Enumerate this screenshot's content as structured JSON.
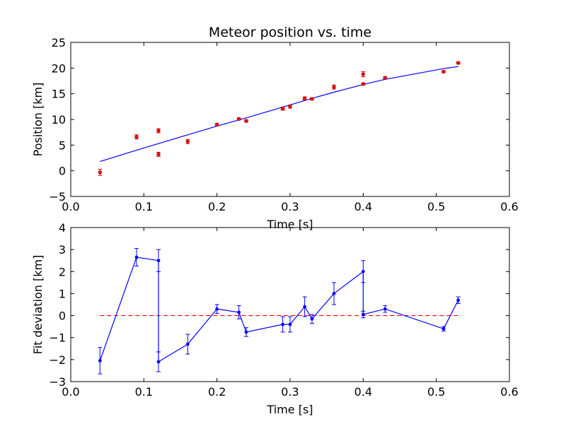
{
  "chart_data": [
    {
      "type": "scatter",
      "title": "Meteor position vs. time",
      "xlabel": "Time [s]",
      "ylabel": "Position [km]",
      "xlim": [
        0.0,
        0.6
      ],
      "ylim": [
        -5,
        25
      ],
      "xticks": [
        "0.0",
        "0.1",
        "0.2",
        "0.3",
        "0.4",
        "0.5",
        "0.6"
      ],
      "yticks": [
        "−5",
        "0",
        "5",
        "10",
        "15",
        "20",
        "25"
      ],
      "grid": false,
      "colors": {
        "points": "#ff0000",
        "fit": "#0000ff"
      },
      "series": [
        {
          "kind": "points-with-error",
          "x": [
            0.04,
            0.09,
            0.12,
            0.12,
            0.16,
            0.2,
            0.23,
            0.24,
            0.29,
            0.3,
            0.32,
            0.33,
            0.36,
            0.4,
            0.4,
            0.43,
            0.51,
            0.53
          ],
          "y": [
            -0.3,
            6.6,
            7.8,
            3.2,
            5.7,
            9.0,
            10.1,
            9.7,
            12.1,
            12.5,
            14.1,
            14.0,
            16.3,
            18.8,
            16.9,
            18.1,
            19.3,
            21.0
          ],
          "yerr": [
            0.6,
            0.4,
            0.4,
            0.4,
            0.4,
            0.2,
            0.2,
            0.2,
            0.3,
            0.3,
            0.3,
            0.2,
            0.4,
            0.5,
            0.2,
            0.2,
            0.2,
            0.2
          ]
        },
        {
          "kind": "fit-line",
          "x": [
            0.04,
            0.09,
            0.12,
            0.16,
            0.2,
            0.24,
            0.29,
            0.33,
            0.36,
            0.4,
            0.43,
            0.51,
            0.53
          ],
          "y": [
            1.8,
            4.0,
            5.3,
            7.0,
            8.7,
            10.3,
            12.4,
            14.1,
            15.3,
            16.8,
            17.8,
            19.9,
            20.3
          ]
        }
      ]
    },
    {
      "type": "line",
      "title": "",
      "xlabel": "Time [s]",
      "ylabel": "Fit deviation [km]",
      "xlim": [
        0.0,
        0.6
      ],
      "ylim": [
        -3,
        4
      ],
      "xticks": [
        "0.0",
        "0.1",
        "0.2",
        "0.3",
        "0.4",
        "0.5",
        "0.6"
      ],
      "yticks": [
        "−3",
        "−2",
        "−1",
        "0",
        "1",
        "2",
        "3",
        "4"
      ],
      "grid": false,
      "colors": {
        "line": "#0000ff",
        "zero": "#ff0000"
      },
      "zero_line": {
        "x": [
          0.04,
          0.53
        ],
        "y": 0
      },
      "series": [
        {
          "kind": "line-with-error",
          "x": [
            0.04,
            0.09,
            0.12,
            0.12,
            0.16,
            0.2,
            0.23,
            0.24,
            0.29,
            0.3,
            0.32,
            0.33,
            0.36,
            0.4,
            0.4,
            0.43,
            0.51,
            0.53
          ],
          "y": [
            -2.05,
            2.65,
            2.5,
            -2.1,
            -1.3,
            0.3,
            0.15,
            -0.75,
            -0.4,
            -0.4,
            0.4,
            -0.15,
            1.0,
            2.0,
            0.05,
            0.3,
            -0.6,
            0.7
          ],
          "yerr": [
            0.6,
            0.4,
            0.5,
            0.45,
            0.45,
            0.2,
            0.3,
            0.2,
            0.35,
            0.35,
            0.45,
            0.2,
            0.5,
            0.5,
            0.15,
            0.15,
            0.1,
            0.15
          ]
        }
      ]
    }
  ]
}
